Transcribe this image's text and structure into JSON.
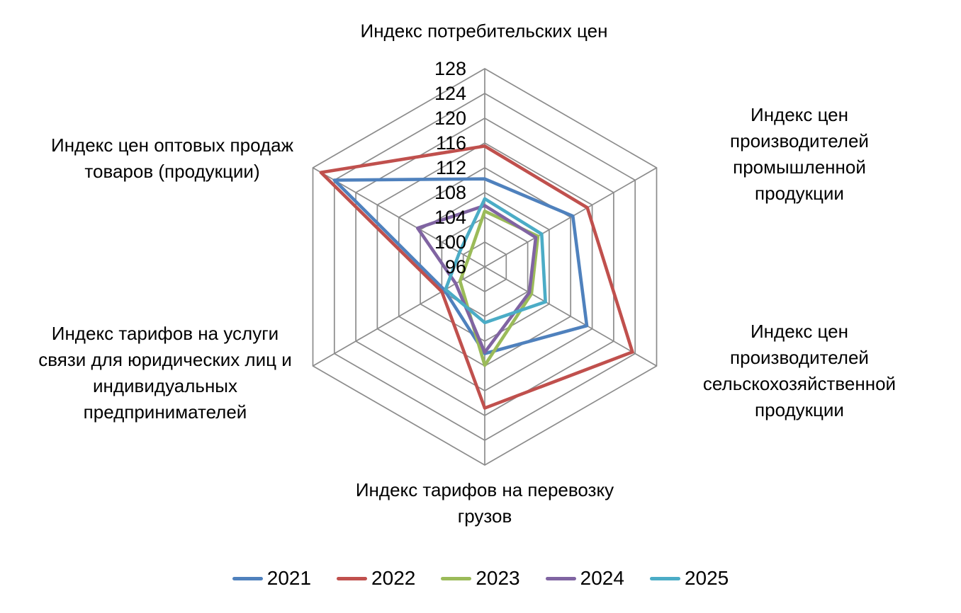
{
  "chart_data": {
    "type": "radar",
    "title": "",
    "axes": [
      {
        "label": "Индекс потребительских цен"
      },
      {
        "label": "Индекс цен производителей\nпромышленной продукции"
      },
      {
        "label": "Индекс цен производителей\nсельскохозяйственной\nпродукции"
      },
      {
        "label": "Индекс тарифов на перевозку\nгрузов"
      },
      {
        "label": "Индекс тарифов на услуги\nсвязи для юридических лиц и\nиндивидуальных\nпредпринимателей"
      },
      {
        "label": "Индекс цен оптовых продаж\nтоваров (продукции)"
      }
    ],
    "scale": {
      "min": 96,
      "max": 128,
      "step": 4,
      "tick_labels": [
        128,
        124,
        120,
        116,
        112,
        108,
        104,
        100,
        96
      ]
    },
    "series": [
      {
        "name": "2021",
        "color": "#4F81BD",
        "values": [
          110.2,
          112.4,
          115.0,
          110.0,
          103.5,
          124.0
        ]
      },
      {
        "name": "2022",
        "color": "#C0504D",
        "values": [
          115.5,
          115.1,
          123.5,
          118.8,
          104.0,
          126.5
        ]
      },
      {
        "name": "2023",
        "color": "#9BBB59",
        "values": [
          105.0,
          105.9,
          104.7,
          111.9,
          100.6,
          99.0
        ]
      },
      {
        "name": "2024",
        "color": "#8064A2",
        "values": [
          105.9,
          105.5,
          104.3,
          109.8,
          101.4,
          108.5
        ]
      },
      {
        "name": "2025",
        "color": "#4BACC6",
        "values": [
          107.0,
          106.6,
          107.3,
          105.0,
          103.3,
          100.7
        ]
      }
    ],
    "grid": {
      "show": true,
      "color": "#8C8C8C"
    },
    "legend": {
      "position": "bottom",
      "entries": [
        "2021",
        "2022",
        "2023",
        "2024",
        "2025"
      ]
    }
  }
}
